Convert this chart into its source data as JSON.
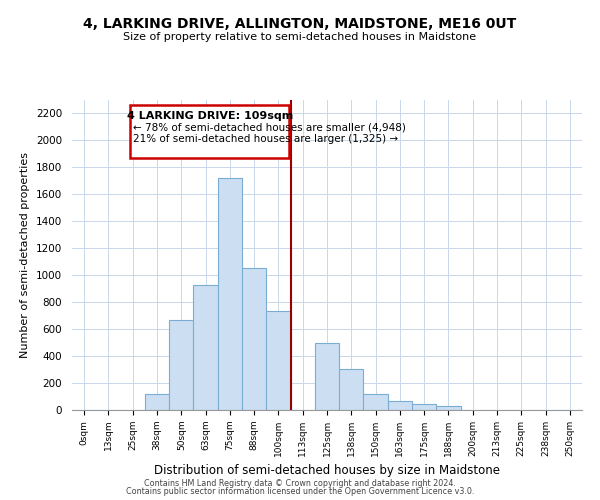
{
  "title": "4, LARKING DRIVE, ALLINGTON, MAIDSTONE, ME16 0UT",
  "subtitle": "Size of property relative to semi-detached houses in Maidstone",
  "bar_labels": [
    "0sqm",
    "13sqm",
    "25sqm",
    "38sqm",
    "50sqm",
    "63sqm",
    "75sqm",
    "88sqm",
    "100sqm",
    "113sqm",
    "125sqm",
    "138sqm",
    "150sqm",
    "163sqm",
    "175sqm",
    "188sqm",
    "200sqm",
    "213sqm",
    "225sqm",
    "238sqm",
    "250sqm"
  ],
  "bar_values": [
    0,
    0,
    0,
    120,
    665,
    925,
    1720,
    1055,
    735,
    0,
    500,
    305,
    120,
    70,
    45,
    30,
    0,
    0,
    0,
    0,
    0
  ],
  "bar_color": "#ccdff2",
  "bar_edge_color": "#7aadd4",
  "vline_color": "#990000",
  "annotation_title": "4 LARKING DRIVE: 109sqm",
  "annotation_line1": "← 78% of semi-detached houses are smaller (4,948)",
  "annotation_line2": "21% of semi-detached houses are larger (1,325) →",
  "annotation_box_color": "#cc0000",
  "ylabel": "Number of semi-detached properties",
  "xlabel": "Distribution of semi-detached houses by size in Maidstone",
  "footer1": "Contains HM Land Registry data © Crown copyright and database right 2024.",
  "footer2": "Contains public sector information licensed under the Open Government Licence v3.0.",
  "ylim": [
    0,
    2300
  ],
  "yticks": [
    0,
    200,
    400,
    600,
    800,
    1000,
    1200,
    1400,
    1600,
    1800,
    2000,
    2200
  ]
}
